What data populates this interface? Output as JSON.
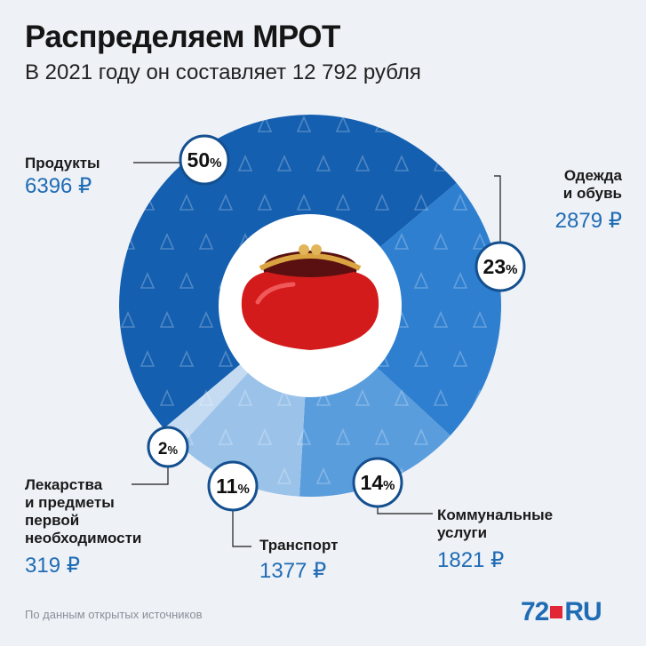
{
  "title": "Распределяем МРОТ",
  "subtitle": "В 2021 году он составляет 12 792 рубля",
  "source": "По данным открытых источников",
  "logo": {
    "num": "72",
    "ru": "RU"
  },
  "colors": {
    "products": "#145fb0",
    "clothes": "#2f7fd0",
    "utilities": "#5a9ddd",
    "transport": "#9bc3ea",
    "medicine": "#c5dbf2",
    "accent_text": "#1f6cb5"
  },
  "chart_data": {
    "type": "pie",
    "title": "Распределяем МРОТ",
    "subtitle": "В 2021 году он составляет 12 792 рубля",
    "total": 12792,
    "slices": [
      {
        "label": "Продукты",
        "percent": 50,
        "percent_text": "50",
        "value": 6396,
        "value_text": "6396 ₽"
      },
      {
        "label": "Одежда\nи обувь",
        "percent": 23,
        "percent_text": "23",
        "value": 2879,
        "value_text": "2879 ₽"
      },
      {
        "label": "Коммунальные\nуслуги",
        "percent": 14,
        "percent_text": "14",
        "value": 1821,
        "value_text": "1821 ₽"
      },
      {
        "label": "Транспорт",
        "percent": 11,
        "percent_text": "11",
        "value": 1377,
        "value_text": "1377 ₽"
      },
      {
        "label": "Лекарства\nи предметы\nпервой\nнеобходимости",
        "percent": 2,
        "percent_text": "2",
        "value": 319,
        "value_text": "319 ₽"
      }
    ],
    "percent_sign": "%"
  }
}
